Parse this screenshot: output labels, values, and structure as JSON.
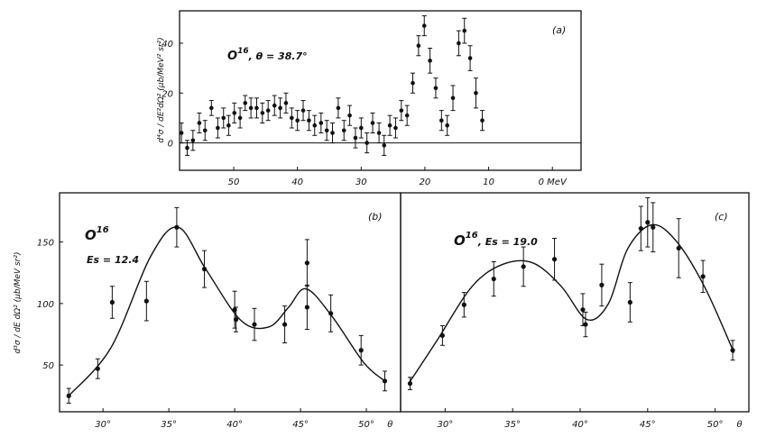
{
  "chart_data": [
    {
      "panel_label": "(a)",
      "type": "scatter",
      "annotation": {
        "base": "O",
        "sup": "16",
        "rest": ", θ = 38.7°"
      },
      "ylabel": "d⁴σ / dE²dΩ² (μb/MeV² sr²)",
      "xlabel": "MeV",
      "x_ticks": [
        "50",
        "40",
        "30",
        "20",
        "10",
        "0 MeV"
      ],
      "y_ticks": [
        "0",
        "20",
        "40"
      ],
      "x_reversed": true,
      "xlim": [
        58.5,
        -4.5
      ],
      "ylim": [
        -11,
        53
      ],
      "zero_line": true,
      "points": [
        {
          "x": 58.2,
          "y": 4,
          "err": 4
        },
        {
          "x": 57.3,
          "y": -2,
          "err": 3
        },
        {
          "x": 56.4,
          "y": 1,
          "err": 4
        },
        {
          "x": 55.4,
          "y": 8,
          "err": 4
        },
        {
          "x": 54.5,
          "y": 5,
          "err": 4
        },
        {
          "x": 53.5,
          "y": 14,
          "err": 3
        },
        {
          "x": 52.5,
          "y": 6,
          "err": 4
        },
        {
          "x": 51.6,
          "y": 10,
          "err": 4
        },
        {
          "x": 50.8,
          "y": 7,
          "err": 4
        },
        {
          "x": 49.9,
          "y": 12,
          "err": 4
        },
        {
          "x": 49,
          "y": 10,
          "err": 4
        },
        {
          "x": 48.2,
          "y": 16,
          "err": 3
        },
        {
          "x": 47.3,
          "y": 14,
          "err": 4
        },
        {
          "x": 46.4,
          "y": 14,
          "err": 4
        },
        {
          "x": 45.5,
          "y": 12,
          "err": 4
        },
        {
          "x": 44.6,
          "y": 13,
          "err": 4
        },
        {
          "x": 43.6,
          "y": 15,
          "err": 4
        },
        {
          "x": 42.7,
          "y": 14,
          "err": 4
        },
        {
          "x": 41.8,
          "y": 16,
          "err": 4
        },
        {
          "x": 40.9,
          "y": 10,
          "err": 4
        },
        {
          "x": 40,
          "y": 9,
          "err": 4
        },
        {
          "x": 39.1,
          "y": 13,
          "err": 4
        },
        {
          "x": 38.2,
          "y": 9,
          "err": 4
        },
        {
          "x": 37.3,
          "y": 7,
          "err": 4
        },
        {
          "x": 36.3,
          "y": 8,
          "err": 4
        },
        {
          "x": 35.4,
          "y": 5,
          "err": 4
        },
        {
          "x": 34.5,
          "y": 4,
          "err": 4
        },
        {
          "x": 33.6,
          "y": 14,
          "err": 4
        },
        {
          "x": 32.7,
          "y": 5,
          "err": 4
        },
        {
          "x": 31.8,
          "y": 11,
          "err": 4
        },
        {
          "x": 30.9,
          "y": 2,
          "err": 4
        },
        {
          "x": 30,
          "y": 6,
          "err": 4
        },
        {
          "x": 29.1,
          "y": 0,
          "err": 4
        },
        {
          "x": 28.2,
          "y": 8,
          "err": 4
        },
        {
          "x": 27.2,
          "y": 4,
          "err": 4
        },
        {
          "x": 26.4,
          "y": -1,
          "err": 4
        },
        {
          "x": 25.5,
          "y": 7,
          "err": 4
        },
        {
          "x": 24.6,
          "y": 6,
          "err": 4
        },
        {
          "x": 23.7,
          "y": 13,
          "err": 4
        },
        {
          "x": 22.8,
          "y": 11,
          "err": 4
        },
        {
          "x": 21.9,
          "y": 24,
          "err": 4
        },
        {
          "x": 21,
          "y": 39,
          "err": 4
        },
        {
          "x": 20.1,
          "y": 47,
          "err": 4
        },
        {
          "x": 19.2,
          "y": 33,
          "err": 5
        },
        {
          "x": 18.3,
          "y": 22,
          "err": 4
        },
        {
          "x": 17.4,
          "y": 9,
          "err": 4
        },
        {
          "x": 16.5,
          "y": 7,
          "err": 4
        },
        {
          "x": 15.6,
          "y": 18,
          "err": 5
        },
        {
          "x": 14.7,
          "y": 40,
          "err": 5
        },
        {
          "x": 13.8,
          "y": 45,
          "err": 5
        },
        {
          "x": 12.9,
          "y": 34,
          "err": 5
        },
        {
          "x": 12,
          "y": 20,
          "err": 6
        },
        {
          "x": 11,
          "y": 9,
          "err": 4
        }
      ]
    },
    {
      "panel_label": "(b)",
      "type": "scatter",
      "annotation": {
        "base": "O",
        "sup": "16",
        "line2": "Es = 12.4"
      },
      "ylabel": "d³σ / dE dΩ² (μb/MeV sr²)",
      "x_ticks": [
        "30°",
        "35°",
        "40°",
        "45°",
        "50°",
        "θ"
      ],
      "y_ticks": [
        "50",
        "100",
        "150"
      ],
      "xlim": [
        26.7,
        52.6
      ],
      "ylim": [
        12,
        190
      ],
      "points": [
        {
          "x": 27.4,
          "y": 25,
          "err": 6
        },
        {
          "x": 29.6,
          "y": 47,
          "err": 8
        },
        {
          "x": 30.7,
          "y": 101,
          "err": 13
        },
        {
          "x": 33.3,
          "y": 102,
          "err": 16
        },
        {
          "x": 35.6,
          "y": 162,
          "err": 16
        },
        {
          "x": 37.7,
          "y": 128,
          "err": 15
        },
        {
          "x": 40,
          "y": 95,
          "err": 15
        },
        {
          "x": 40.1,
          "y": 87,
          "err": 10
        },
        {
          "x": 41.5,
          "y": 83,
          "err": 13
        },
        {
          "x": 43.8,
          "y": 83,
          "err": 15
        },
        {
          "x": 45.5,
          "y": 133,
          "err": 19
        },
        {
          "x": 45.5,
          "y": 97,
          "err": 18
        },
        {
          "x": 47.3,
          "y": 92,
          "err": 15
        },
        {
          "x": 49.6,
          "y": 62,
          "err": 12
        },
        {
          "x": 51.4,
          "y": 37,
          "err": 8
        }
      ],
      "fit_curve": {
        "x": [
          27.4,
          30.6,
          33.6,
          35.7,
          37.8,
          40.5,
          42.6,
          44.1,
          45.4,
          47.3,
          49.8,
          51.4
        ],
        "y": [
          25,
          64,
          138,
          162,
          128,
          86,
          81,
          97,
          112,
          91,
          52,
          37
        ]
      }
    },
    {
      "panel_label": "(c)",
      "type": "scatter",
      "annotation": {
        "base": "O",
        "sup": "16",
        "rest": ", Es = 19.0"
      },
      "x_ticks": [
        "30°",
        "35°",
        "40°",
        "45°",
        "50°",
        "θ"
      ],
      "xlim": [
        26.7,
        52.5
      ],
      "ylim": [
        12,
        190
      ],
      "points": [
        {
          "x": 27.4,
          "y": 35,
          "err": 5
        },
        {
          "x": 29.8,
          "y": 74,
          "err": 8
        },
        {
          "x": 31.4,
          "y": 99,
          "err": 10
        },
        {
          "x": 33.6,
          "y": 120,
          "err": 14
        },
        {
          "x": 35.8,
          "y": 130,
          "err": 16
        },
        {
          "x": 38.1,
          "y": 136,
          "err": 17
        },
        {
          "x": 40.2,
          "y": 95,
          "err": 13
        },
        {
          "x": 40.4,
          "y": 83,
          "err": 10
        },
        {
          "x": 41.6,
          "y": 115,
          "err": 17
        },
        {
          "x": 43.7,
          "y": 101,
          "err": 16
        },
        {
          "x": 44.5,
          "y": 161,
          "err": 18
        },
        {
          "x": 45,
          "y": 166,
          "err": 20
        },
        {
          "x": 45.4,
          "y": 162,
          "err": 20
        },
        {
          "x": 47.3,
          "y": 145,
          "err": 24
        },
        {
          "x": 49.1,
          "y": 122,
          "err": 13
        },
        {
          "x": 51.3,
          "y": 62,
          "err": 8
        }
      ],
      "fit_curve": {
        "x": [
          27.3,
          29.4,
          32,
          34.3,
          36.5,
          38.6,
          40.5,
          42.1,
          43.5,
          45.3,
          47.1,
          49.2,
          51.4
        ],
        "y": [
          35,
          70,
          114,
          132,
          133,
          114,
          87,
          100,
          144,
          164,
          151,
          114,
          60
        ]
      }
    }
  ]
}
